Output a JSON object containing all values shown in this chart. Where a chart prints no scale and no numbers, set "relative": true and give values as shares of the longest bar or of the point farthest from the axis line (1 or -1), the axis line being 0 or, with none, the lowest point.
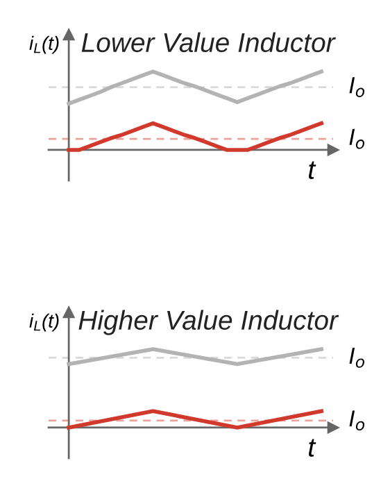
{
  "chart_data": [
    {
      "type": "line",
      "title": "Lower Value Inductor",
      "xlabel": "t",
      "ylabel": "i$_{L}$(t)",
      "relative": true,
      "line_style": "solid",
      "categories": [
        null,
        null,
        null,
        null,
        null,
        null,
        null,
        null,
        null,
        null,
        null,
        null,
        null,
        null,
        null,
        null,
        null,
        null,
        null,
        null,
        null,
        null,
        null,
        null,
        null
      ],
      "series": [
        {
          "color": "#b3b3b3",
          "values": [
            0.59,
            0.64,
            0.69,
            0.74,
            0.8,
            0.85,
            0.9,
            0.95,
            1,
            0.95,
            0.9,
            0.85,
            0.81,
            0.76,
            0.71,
            0.66,
            0.61,
            0.66,
            0.71,
            0.76,
            0.81,
            0.85,
            0.9,
            0.95,
            1
          ]
        },
        {
          "color": "#d0392b",
          "values": [
            0,
            0,
            0.05,
            0.1,
            0.15,
            0.19,
            0.24,
            0.29,
            0.34,
            0.29,
            0.24,
            0.19,
            0.15,
            0.1,
            0.05,
            0,
            0,
            0,
            0.05,
            0.1,
            0.15,
            0.19,
            0.24,
            0.29,
            0.34
          ]
        }
      ],
      "ref_lines": [
        {
          "axis": "y",
          "value": 0.8,
          "label": "I$_{o}$",
          "color": "#d9d9d9",
          "line_style": "dashed"
        },
        {
          "axis": "y",
          "value": 0.14,
          "label": "I$_{o}$",
          "color": "#e9a39c",
          "line_style": "dashed"
        }
      ]
    },
    {
      "type": "line",
      "title": "Higher Value Inductor",
      "xlabel": "t",
      "ylabel": "i$_{L}$(t)",
      "relative": true,
      "line_style": "solid",
      "categories": [
        null,
        null,
        null,
        null
      ],
      "series": [
        {
          "color": "#b3b3b3",
          "values": [
            0.81,
            1,
            0.81,
            1
          ]
        },
        {
          "color": "#d0392b",
          "values": [
            0,
            0.21,
            0,
            0.21
          ]
        }
      ],
      "ref_lines": [
        {
          "axis": "y",
          "value": 0.89,
          "label": "I$_{o}$",
          "color": "#d9d9d9",
          "line_style": "dashed"
        },
        {
          "axis": "y",
          "value": 0.09,
          "label": "I$_{o}$",
          "color": "#e9a39c",
          "line_style": "dashed"
        }
      ]
    }
  ]
}
